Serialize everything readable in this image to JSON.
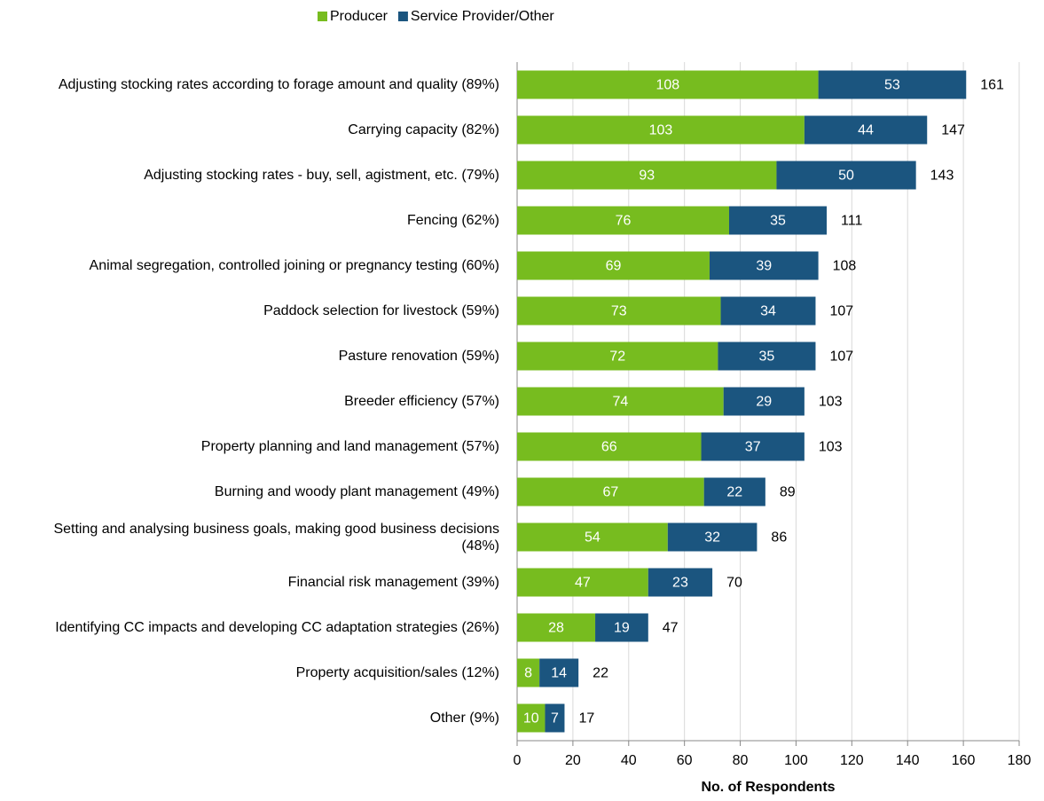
{
  "chart_data": {
    "type": "bar",
    "orientation": "horizontal",
    "stacked": true,
    "x_label": "No. of Respondents",
    "categories": [
      "Adjusting stocking rates according to forage amount and quality (89%)",
      "Carrying capacity (82%)",
      "Adjusting stocking rates - buy, sell, agistment, etc. (79%)",
      "Fencing (62%)",
      "Animal segregation, controlled joining or pregnancy testing (60%)",
      "Paddock selection for livestock (59%)",
      "Pasture renovation (59%)",
      "Breeder efficiency (57%)",
      "Property planning and land management (57%)",
      "Burning and woody plant management (49%)",
      "Setting and analysing business goals, making good business decisions (48%)",
      "Financial risk management (39%)",
      "Identifying CC impacts and developing CC adaptation strategies (26%)",
      "Property acquisition/sales (12%)",
      "Other (9%)"
    ],
    "series": [
      {
        "name": "Producer",
        "color": "#77bc1f",
        "values": [
          108,
          103,
          93,
          76,
          69,
          73,
          72,
          74,
          66,
          67,
          54,
          47,
          28,
          8,
          10
        ]
      },
      {
        "name": "Service Provider/Other",
        "color": "#1b557f",
        "values": [
          53,
          44,
          50,
          35,
          39,
          34,
          35,
          29,
          37,
          22,
          32,
          23,
          19,
          14,
          7
        ]
      }
    ],
    "totals": [
      161,
      147,
      143,
      111,
      108,
      107,
      107,
      103,
      103,
      89,
      86,
      70,
      47,
      22,
      17
    ],
    "xlim": [
      0,
      180
    ],
    "xticks": [
      0,
      20,
      40,
      60,
      80,
      100,
      120,
      140,
      160,
      180
    ],
    "grid": true,
    "legend": "top"
  }
}
